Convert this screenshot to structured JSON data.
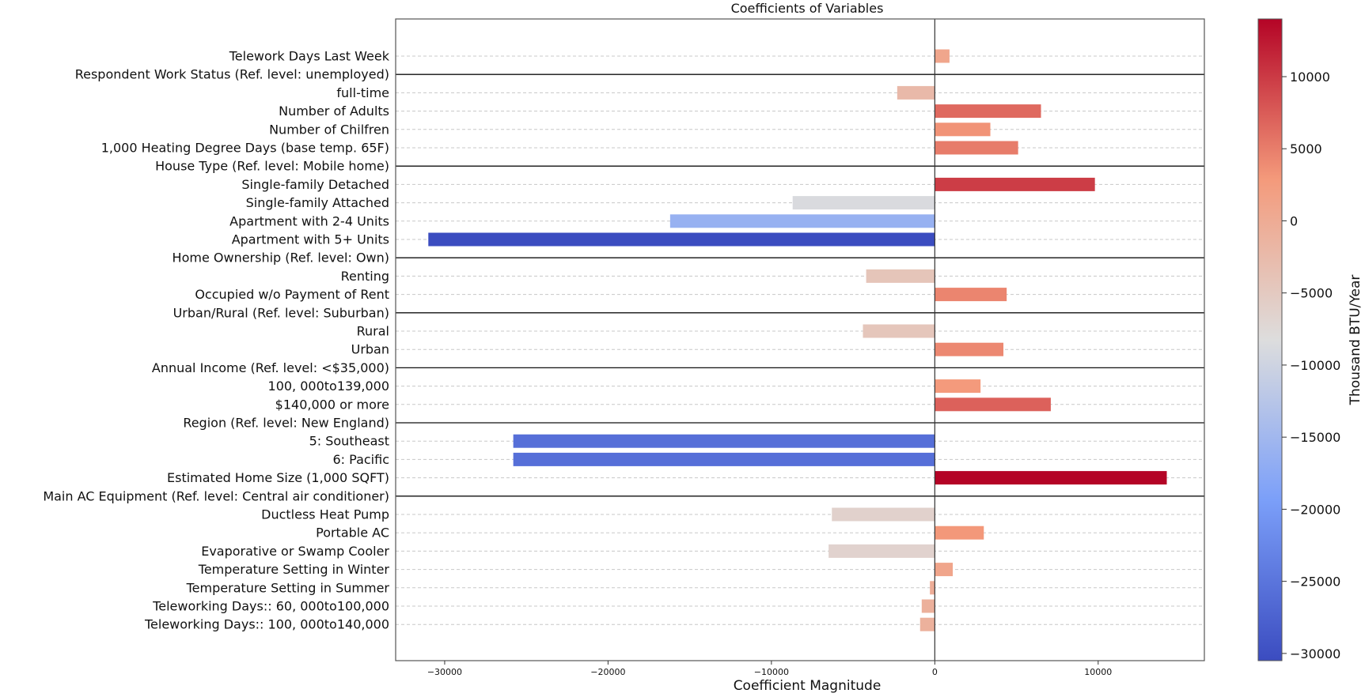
{
  "chart_data": {
    "type": "bar",
    "orientation": "horizontal",
    "title": "Coefficients of Variables",
    "xlabel": "Coefficient Magnitude",
    "ylabel": "",
    "xlim": [
      -33000,
      16500
    ],
    "xticks": [
      -30000,
      -20000,
      -10000,
      0,
      10000
    ],
    "colorbar": {
      "label": "Thousand BTU/Year",
      "range": [
        -30500,
        14000
      ],
      "ticks": [
        10000,
        5000,
        0,
        -5000,
        -10000,
        -15000,
        -20000,
        -25000,
        -30000
      ],
      "colormap": "coolwarm"
    },
    "categories": [
      {
        "label": "Telework Days Last Week",
        "value": 900
      },
      {
        "label": "Respondent Work Status (Ref. level: unemployed)",
        "value": null,
        "group_header": true
      },
      {
        "label": "full-time",
        "value": -2300
      },
      {
        "label": "Number of Adults",
        "value": 6500
      },
      {
        "label": "Number of Chilfren",
        "value": 3400
      },
      {
        "label": "1,000 Heating Degree Days (base temp. 65F)",
        "value": 5100
      },
      {
        "label": "House Type (Ref. level: Mobile home)",
        "value": null,
        "group_header": true
      },
      {
        "label": "Single-family Detached",
        "value": 9800
      },
      {
        "label": "Single-family Attached",
        "value": -8700
      },
      {
        "label": "Apartment with 2-4 Units",
        "value": -16200
      },
      {
        "label": "Apartment with 5+ Units",
        "value": -31000
      },
      {
        "label": "Home Ownership (Ref. level: Own)",
        "value": null,
        "group_header": true
      },
      {
        "label": "Renting",
        "value": -4200
      },
      {
        "label": "Occupied w/o Payment of Rent",
        "value": 4400
      },
      {
        "label": "Urban/Rural (Ref. level: Suburban)",
        "value": null,
        "group_header": true
      },
      {
        "label": "Rural",
        "value": -4400
      },
      {
        "label": "Urban",
        "value": 4200
      },
      {
        "label": "Annual Income (Ref. level: <$35,000)",
        "value": null,
        "group_header": true
      },
      {
        "label": "100, 000to139,000",
        "value": 2800
      },
      {
        "label": "$140,000 or more",
        "value": 7100
      },
      {
        "label": "Region (Ref. level: New England)",
        "value": null,
        "group_header": true
      },
      {
        "label": "5: Southeast",
        "value": -25800
      },
      {
        "label": "6: Pacific",
        "value": -25800
      },
      {
        "label": "Estimated Home Size (1,000 SQFT)",
        "value": 14200
      },
      {
        "label": "Main AC Equipment (Ref. level: Central air conditioner)",
        "value": null,
        "group_header": true
      },
      {
        "label": "Ductless Heat Pump",
        "value": -6300
      },
      {
        "label": "Portable AC",
        "value": 3000
      },
      {
        "label": "Evaporative or Swamp Cooler",
        "value": -6500
      },
      {
        "label": "Temperature Setting in Winter",
        "value": 1100
      },
      {
        "label": "Temperature Setting in Summer",
        "value": -300
      },
      {
        "label": "Teleworking Days:: 60, 000to100,000",
        "value": -800
      },
      {
        "label": "Teleworking Days:: 100, 000to140,000",
        "value": -900
      }
    ]
  }
}
